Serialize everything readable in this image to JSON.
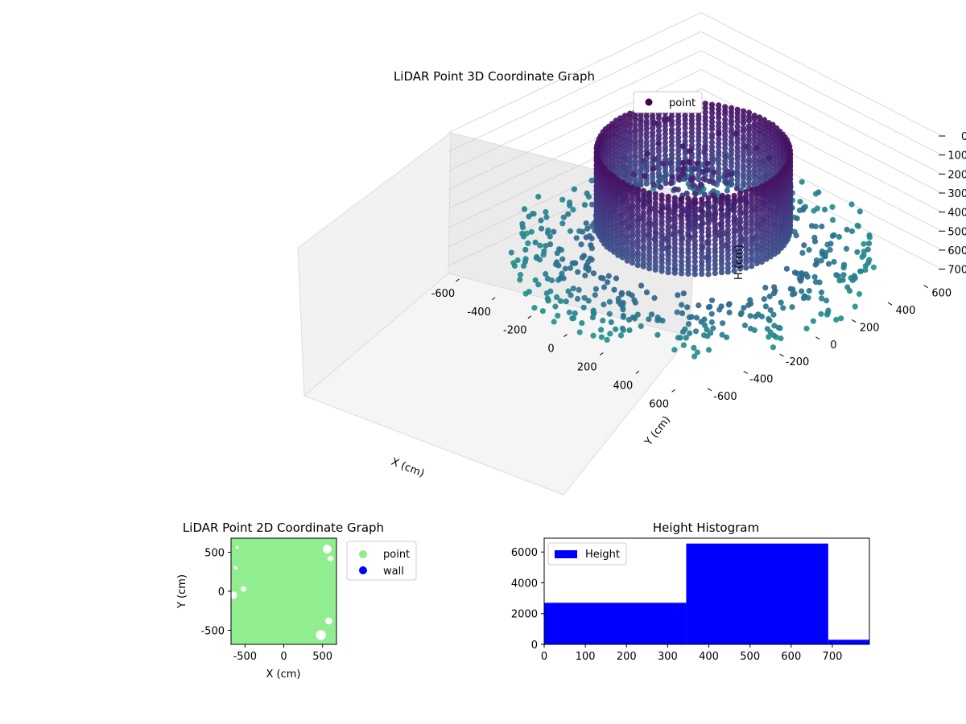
{
  "chart_data": [
    {
      "type": "scatter",
      "projection": "3d",
      "title": "LiDAR Point 3D Coordinate Graph",
      "xlabel": "X (cm)",
      "ylabel": "Y (cm)",
      "zlabel": "H (cm)",
      "xticks": [
        -600,
        -400,
        -200,
        0,
        200,
        400,
        600
      ],
      "yticks": [
        -600,
        -400,
        -200,
        0,
        200,
        400,
        600
      ],
      "zticks": [
        0,
        100,
        200,
        300,
        400,
        500,
        600,
        700
      ],
      "xlim": [
        -660,
        680
      ],
      "ylim": [
        -700,
        700
      ],
      "zlim": [
        0,
        740
      ],
      "z_inverted": true,
      "colormap": "viridis",
      "grid": true,
      "legend": {
        "entries": [
          "point"
        ],
        "placement": "upper-right"
      },
      "series": [
        {
          "name": "point",
          "description": "Cylindrical wall of points, radius about 380 cm, heights about 90–500 cm, plus a scattered ring of floor points at heights about 560–720 cm extending to radius about 700 cm, and a cluster of points near 500–600 cm height inside the ring",
          "wall_radius": 380,
          "wall_height_range": [
            90,
            500
          ],
          "floor_height_range": [
            560,
            720
          ],
          "outer_radius": 700
        }
      ]
    },
    {
      "type": "scatter",
      "title": "LiDAR Point 2D Coordinate Graph",
      "xlabel": "X (cm)",
      "ylabel": "Y (cm)",
      "xticks": [
        -500,
        0,
        500
      ],
      "yticks": [
        -500,
        0,
        500
      ],
      "xlim": [
        -680,
        680
      ],
      "ylim": [
        -680,
        680
      ],
      "legend": {
        "entries": [
          "point",
          "wall"
        ],
        "placement": "outside-right"
      },
      "series": [
        {
          "name": "point",
          "color": "#90ee90"
        },
        {
          "name": "wall",
          "color": "#0000ff"
        }
      ]
    },
    {
      "type": "bar",
      "title": "Height Histogram",
      "xticks": [
        0,
        100,
        200,
        300,
        400,
        500,
        600,
        700
      ],
      "yticks": [
        0,
        2000,
        4000,
        6000
      ],
      "xlim": [
        0,
        790
      ],
      "ylim": [
        0,
        6900
      ],
      "legend": {
        "entries": [
          "Height"
        ],
        "placement": "upper-left"
      },
      "series": [
        {
          "name": "Height",
          "color": "#0000ff",
          "bins": [
            {
              "start": 0,
              "end": 345,
              "count": 2700
            },
            {
              "start": 345,
              "end": 690,
              "count": 6550
            },
            {
              "start": 690,
              "end": 790,
              "count": 300
            }
          ]
        }
      ]
    }
  ]
}
